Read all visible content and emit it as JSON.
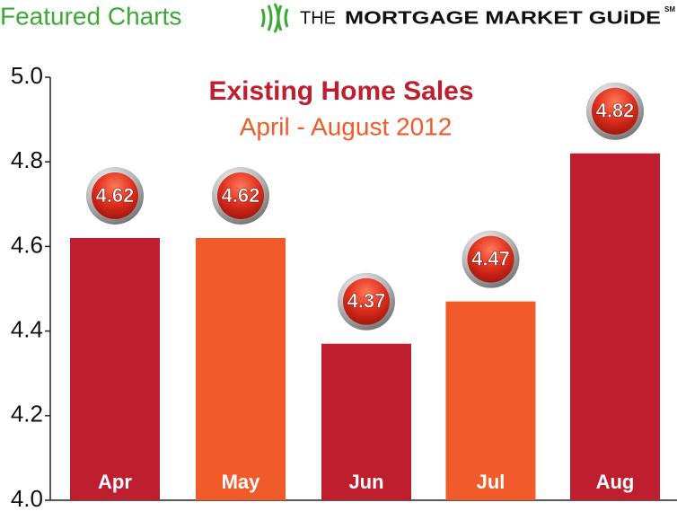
{
  "header": {
    "brand": "Featured Charts",
    "the": "THE",
    "logo": "MORTGAGE MARKET GUiDE",
    "mark": "SM"
  },
  "chart_data": {
    "type": "bar",
    "title": "Existing Home Sales",
    "subtitle": "April - August 2012",
    "categories": [
      "Apr",
      "May",
      "Jun",
      "Jul",
      "Aug"
    ],
    "values": [
      4.62,
      4.62,
      4.37,
      4.47,
      4.82
    ],
    "colors": [
      "#be1e2d",
      "#f15a29",
      "#be1e2d",
      "#f15a29",
      "#be1e2d"
    ],
    "ylim": [
      4.0,
      5.0
    ],
    "yticks": [
      {
        "value": 4,
        "label": "4.0"
      },
      4.2,
      4.4,
      4.6,
      4.8,
      {
        "value": 5,
        "label": "5.0"
      }
    ]
  }
}
